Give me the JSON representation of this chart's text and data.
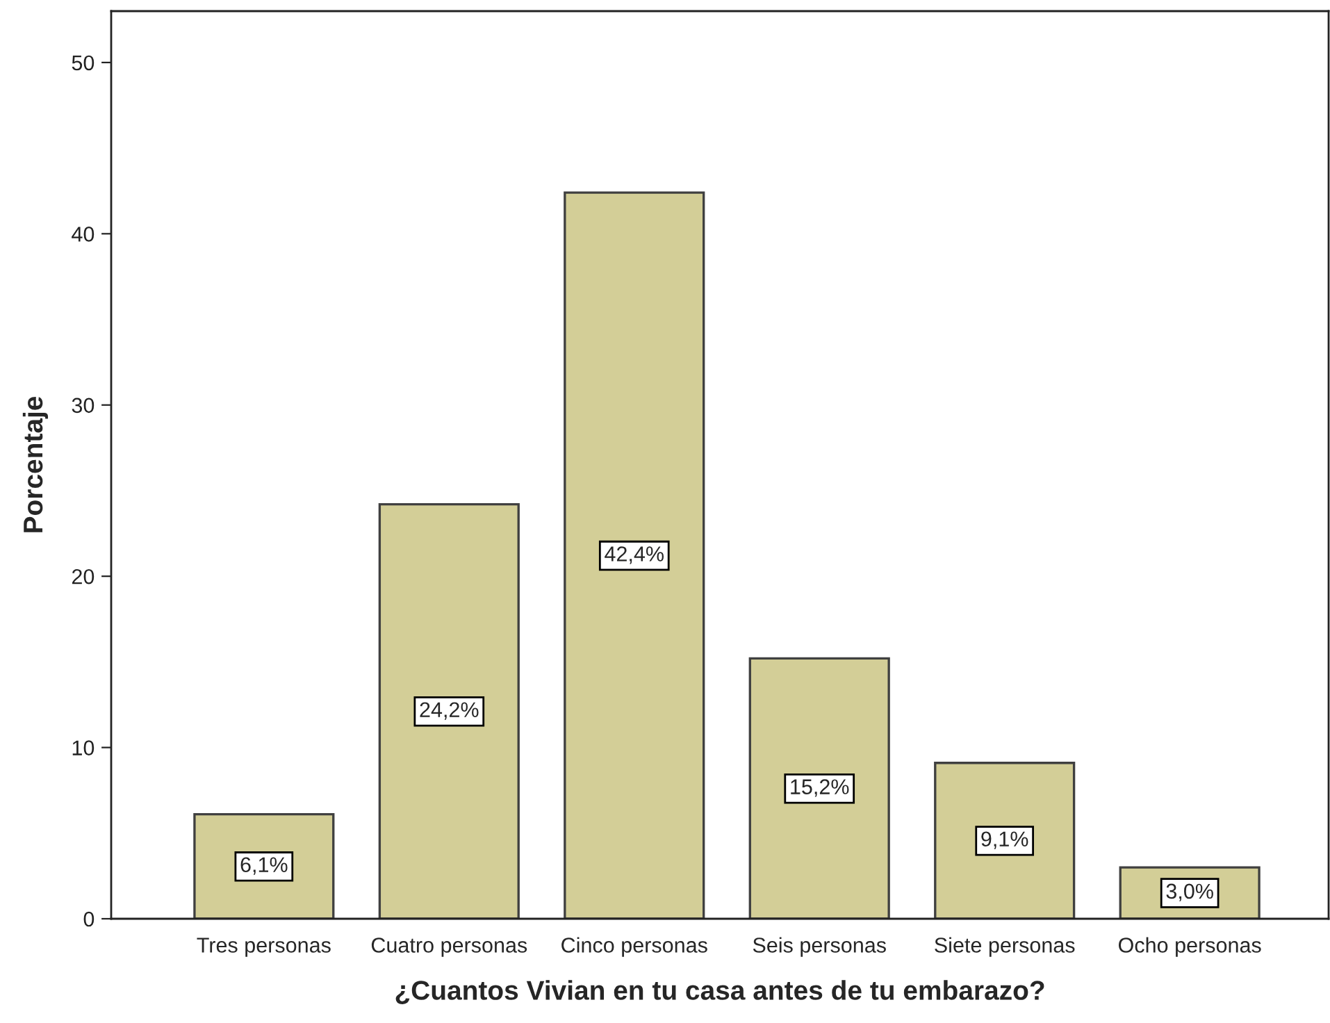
{
  "chart_data": {
    "type": "bar",
    "xlabel": "¿Cuantos Vivian en tu casa antes de tu embarazo?",
    "ylabel": "Porcentaje",
    "categories": [
      "Tres personas",
      "Cuatro personas",
      "Cinco personas",
      "Seis personas",
      "Siete personas",
      "Ocho personas"
    ],
    "values": [
      6.1,
      24.2,
      42.4,
      15.2,
      9.1,
      3.0
    ],
    "value_labels": [
      "6,1%",
      "24,2%",
      "42,4%",
      "15,2%",
      "9,1%",
      "3,0%"
    ],
    "color": "#d3ce97",
    "ylim": [
      0,
      53
    ],
    "yticks": [
      0,
      10,
      20,
      30,
      40,
      50
    ],
    "grid": false,
    "legend": false
  }
}
